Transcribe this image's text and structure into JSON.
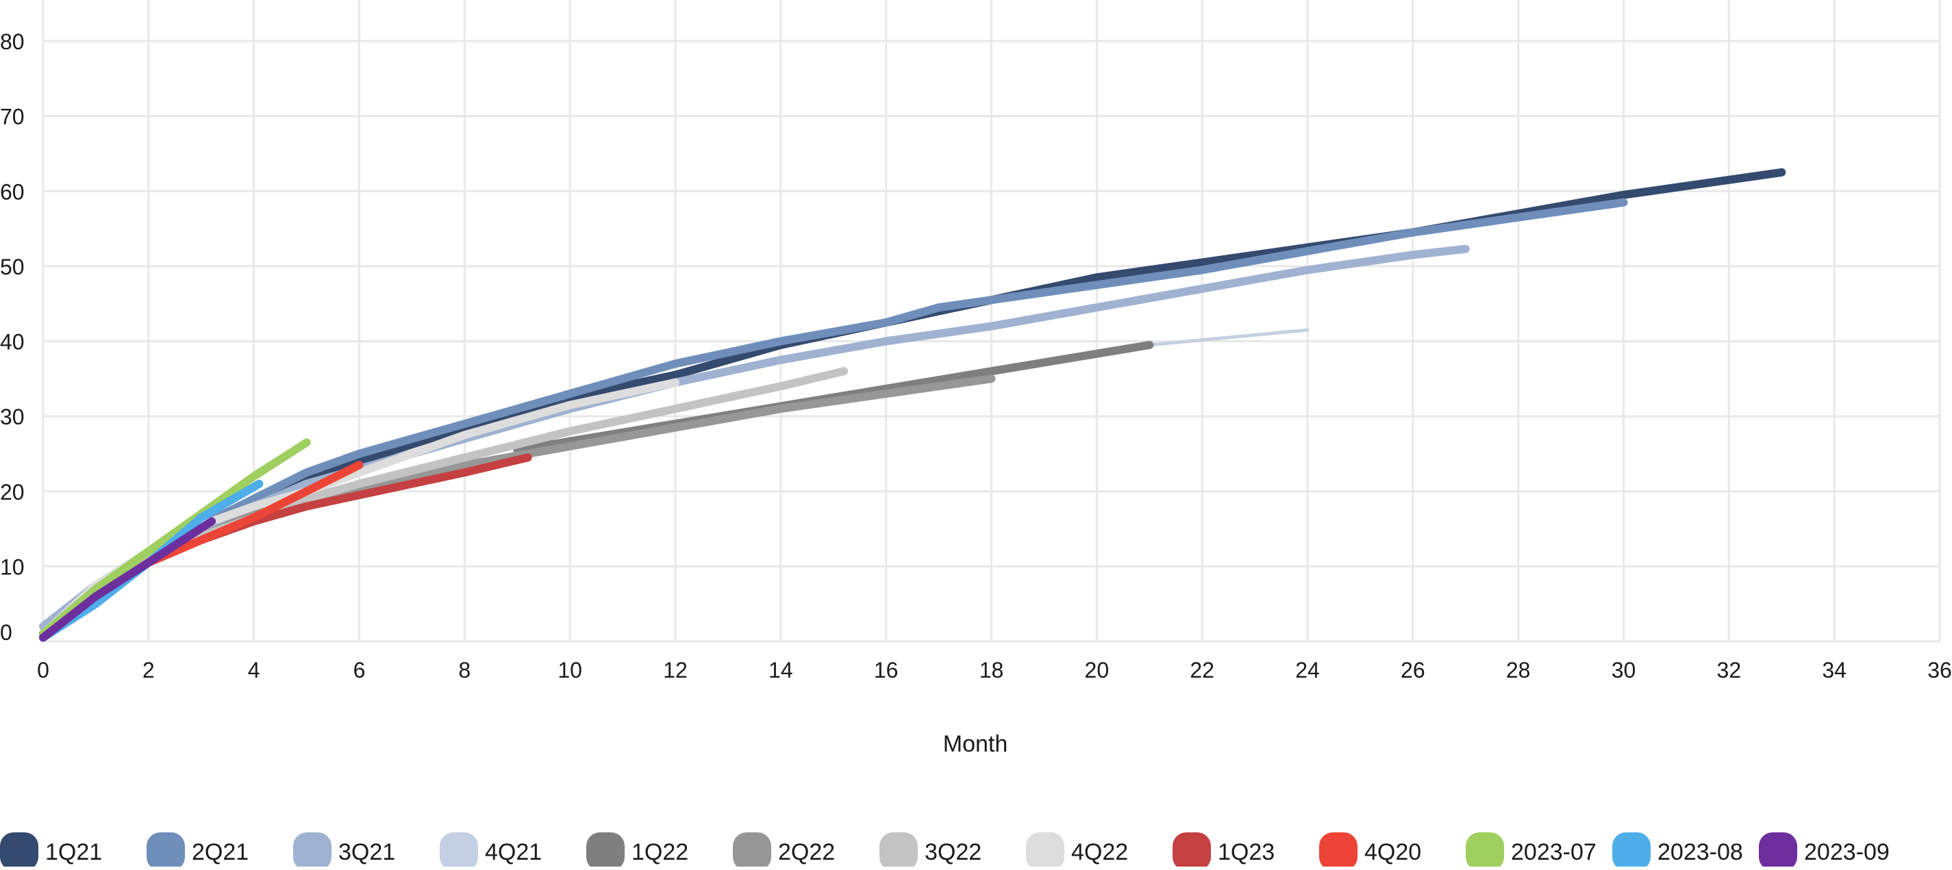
{
  "chart_data": {
    "type": "line",
    "title": "",
    "xlabel": "Month",
    "ylabel": "",
    "xlim": [
      0,
      36
    ],
    "ylim": [
      0,
      80
    ],
    "x_ticks": [
      0,
      2,
      4,
      6,
      8,
      10,
      12,
      14,
      16,
      18,
      20,
      22,
      24,
      26,
      28,
      30,
      32,
      34,
      36
    ],
    "y_ticks": [
      0,
      10,
      20,
      30,
      40,
      50,
      60,
      70,
      80
    ],
    "grid": true,
    "legend_position": "bottom",
    "series": [
      {
        "name": "1Q21",
        "color": "#344a6e",
        "width": 12,
        "points": [
          [
            0,
            1
          ],
          [
            1,
            7
          ],
          [
            2,
            11
          ],
          [
            3,
            15
          ],
          [
            4,
            18.5
          ],
          [
            5,
            21.5
          ],
          [
            6,
            24
          ],
          [
            8,
            28.5
          ],
          [
            10,
            32.5
          ],
          [
            12,
            35.5
          ],
          [
            14,
            39.5
          ],
          [
            16,
            42.5
          ],
          [
            18,
            45.5
          ],
          [
            20,
            48.5
          ],
          [
            22,
            50.5
          ],
          [
            24,
            52.5
          ],
          [
            26,
            54.5
          ],
          [
            28,
            57
          ],
          [
            30,
            59.5
          ],
          [
            32,
            61.5
          ],
          [
            33,
            62.5
          ]
        ]
      },
      {
        "name": "2Q21",
        "color": "#6f8fba",
        "width": 12,
        "points": [
          [
            0,
            1
          ],
          [
            1,
            7
          ],
          [
            2,
            11.5
          ],
          [
            3,
            15.5
          ],
          [
            4,
            19
          ],
          [
            5,
            22.5
          ],
          [
            6,
            25
          ],
          [
            8,
            29
          ],
          [
            10,
            33
          ],
          [
            12,
            37
          ],
          [
            14,
            40
          ],
          [
            16,
            42.5
          ],
          [
            17,
            44.5
          ],
          [
            18,
            45.5
          ],
          [
            20,
            47.5
          ],
          [
            22,
            49.5
          ],
          [
            24,
            52
          ],
          [
            26,
            54.5
          ],
          [
            28,
            56.5
          ],
          [
            30,
            58.5
          ]
        ]
      },
      {
        "name": "3Q21",
        "color": "#9fb2d1",
        "width": 12,
        "points": [
          [
            0,
            2
          ],
          [
            1,
            7.5
          ],
          [
            2,
            11.5
          ],
          [
            3,
            15
          ],
          [
            4,
            18
          ],
          [
            5,
            21
          ],
          [
            6,
            23
          ],
          [
            8,
            27
          ],
          [
            10,
            31
          ],
          [
            12,
            34.5
          ],
          [
            14,
            37.5
          ],
          [
            16,
            40
          ],
          [
            18,
            42
          ],
          [
            20,
            44.5
          ],
          [
            22,
            47
          ],
          [
            24,
            49.5
          ],
          [
            26,
            51.5
          ],
          [
            27,
            52.3
          ]
        ]
      },
      {
        "name": "4Q21",
        "color": "#c4d0e3",
        "width": 5,
        "points": [
          [
            21,
            39.5
          ],
          [
            22.5,
            40.5
          ],
          [
            24,
            41.5
          ]
        ]
      },
      {
        "name": "1Q22",
        "color": "#7f7f7f",
        "width": 12,
        "points": [
          [
            9,
            25.5
          ],
          [
            12,
            29
          ],
          [
            15,
            32.5
          ],
          [
            18,
            36
          ],
          [
            21,
            39.5
          ]
        ]
      },
      {
        "name": "2Q22",
        "color": "#979797",
        "width": 12,
        "points": [
          [
            0,
            1
          ],
          [
            1,
            6.5
          ],
          [
            2,
            10.5
          ],
          [
            3,
            14
          ],
          [
            4,
            17
          ],
          [
            5,
            19
          ],
          [
            6,
            20.5
          ],
          [
            8,
            23.5
          ],
          [
            10,
            26
          ],
          [
            12,
            28.5
          ],
          [
            14,
            31
          ],
          [
            16,
            33
          ],
          [
            18,
            35
          ]
        ]
      },
      {
        "name": "3Q22",
        "color": "#c3c3c3",
        "width": 12,
        "points": [
          [
            0,
            1
          ],
          [
            1,
            7
          ],
          [
            2,
            11
          ],
          [
            3,
            14
          ],
          [
            4,
            16.5
          ],
          [
            5,
            19
          ],
          [
            6,
            21
          ],
          [
            8,
            24.5
          ],
          [
            10,
            28
          ],
          [
            12,
            31
          ],
          [
            14,
            34
          ],
          [
            15.2,
            36
          ]
        ]
      },
      {
        "name": "4Q22",
        "color": "#dddddd",
        "width": 12,
        "points": [
          [
            0,
            1
          ],
          [
            1,
            7.5
          ],
          [
            2,
            12
          ],
          [
            3,
            15.5
          ],
          [
            4,
            18
          ],
          [
            5,
            20
          ],
          [
            6,
            22.5
          ],
          [
            8,
            27.5
          ],
          [
            10,
            31.5
          ],
          [
            12,
            34.5
          ]
        ]
      },
      {
        "name": "1Q23",
        "color": "#c54040",
        "width": 12,
        "points": [
          [
            0,
            1
          ],
          [
            1,
            6
          ],
          [
            2,
            10.5
          ],
          [
            3,
            13.5
          ],
          [
            4,
            16
          ],
          [
            5,
            18
          ],
          [
            6,
            19.5
          ],
          [
            7,
            21
          ],
          [
            8,
            22.5
          ],
          [
            9.2,
            24.5
          ]
        ]
      },
      {
        "name": "4Q20",
        "color": "#ec4436",
        "width": 12,
        "points": [
          [
            0,
            1
          ],
          [
            1,
            6
          ],
          [
            2,
            10.5
          ],
          [
            3,
            13.5
          ],
          [
            4,
            16.5
          ],
          [
            5,
            20
          ],
          [
            6,
            23.5
          ]
        ]
      },
      {
        "name": "2023-07",
        "color": "#9fcf5f",
        "width": 12,
        "points": [
          [
            0,
            1
          ],
          [
            1,
            7
          ],
          [
            2,
            12
          ],
          [
            3,
            17
          ],
          [
            4,
            22
          ],
          [
            5,
            26.5
          ]
        ]
      },
      {
        "name": "2023-08",
        "color": "#4daee9",
        "width": 12,
        "points": [
          [
            0,
            0.5
          ],
          [
            1,
            5
          ],
          [
            2,
            10.5
          ],
          [
            3,
            16.5
          ],
          [
            4.1,
            21
          ]
        ]
      },
      {
        "name": "2023-09",
        "color": "#6d2f9e",
        "width": 12,
        "points": [
          [
            0,
            0.5
          ],
          [
            1,
            6
          ],
          [
            2,
            10.5
          ],
          [
            3.2,
            16
          ]
        ]
      }
    ]
  }
}
